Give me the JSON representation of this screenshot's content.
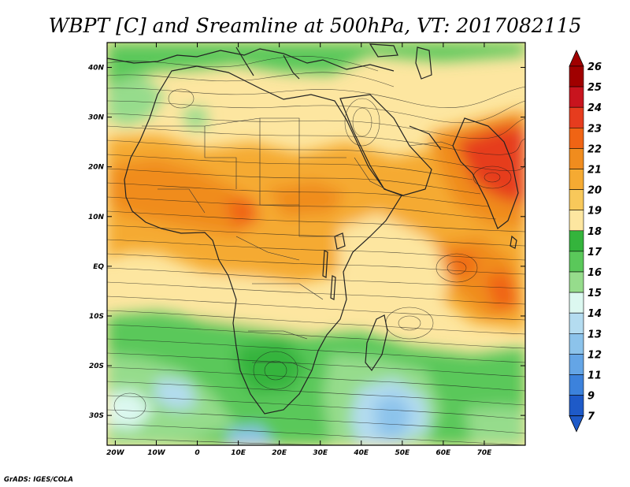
{
  "title": "WBPT [C] and Sreamline at 500hPa, VT: 2017082115",
  "credit": "GrADS: IGES/COLA",
  "map": {
    "lon_range": [
      -22,
      80
    ],
    "lat_range": [
      -36,
      45
    ],
    "x_tick_labels": [
      "20W",
      "10W",
      "0",
      "10E",
      "20E",
      "30E",
      "40E",
      "50E",
      "60E",
      "70E"
    ],
    "x_tick_values": [
      -20,
      -10,
      0,
      10,
      20,
      30,
      40,
      50,
      60,
      70
    ],
    "y_tick_labels": [
      "40N",
      "30N",
      "20N",
      "10N",
      "EQ",
      "10S",
      "20S",
      "30S"
    ],
    "y_tick_values": [
      40,
      30,
      20,
      10,
      0,
      -10,
      -20,
      -30
    ]
  },
  "colorbar": {
    "labels": [
      "26",
      "25",
      "24",
      "23",
      "22",
      "21",
      "20",
      "19",
      "18",
      "17",
      "16",
      "15",
      "14",
      "13",
      "12",
      "11",
      "9",
      "7"
    ],
    "colors": [
      "#a00000",
      "#c8141e",
      "#e63c1e",
      "#f06414",
      "#f08c1e",
      "#f5aa32",
      "#f8c85a",
      "#fde6a0",
      "#34b43c",
      "#5ac85a",
      "#96dc8c",
      "#dcf8f0",
      "#b4dcf0",
      "#8cc3eb",
      "#64a5e6",
      "#3c82dc",
      "#1e5ac8"
    ],
    "top_arrow_color": "#a00000",
    "bottom_arrow_color": "#1e5ac8"
  }
}
